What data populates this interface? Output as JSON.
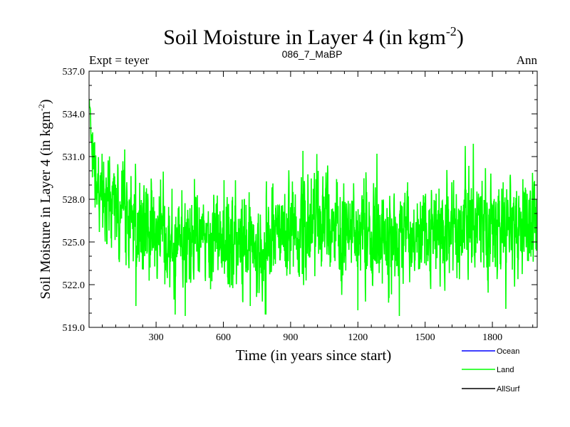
{
  "chart_data": {
    "type": "line",
    "title": "Soil Moisture in Layer 4 (in kgm",
    "title_sup": "-2",
    "title_close": ")",
    "subtitle_left": "Expt = teyer",
    "subtitle_center": "086_7_MaBP",
    "subtitle_right": "Ann",
    "xlabel": "Time (in years since start)",
    "ylabel": "Soil Moisture in Layer 4 (in kgm",
    "ylabel_sup": "-2",
    "ylabel_close": ")",
    "xlim": [
      1,
      2000
    ],
    "ylim": [
      519.0,
      537.0
    ],
    "xticks": [
      300,
      600,
      900,
      1200,
      1500,
      1800
    ],
    "xtick_labels": [
      "300",
      "600",
      "900",
      "1200",
      "1500",
      "1800"
    ],
    "yticks": [
      519.0,
      522.0,
      525.0,
      528.0,
      531.0,
      534.0,
      537.0
    ],
    "ytick_labels": [
      "519.0",
      "522.0",
      "525.0",
      "528.0",
      "531.0",
      "534.0",
      "537.0"
    ],
    "legend": [
      {
        "name": "Ocean",
        "color": "#0000ff"
      },
      {
        "name": "Land",
        "color": "#00ff00"
      },
      {
        "name": "AllSurf",
        "color": "#000000"
      }
    ],
    "series": [
      {
        "name": "Land",
        "color": "#00ff00",
        "generator": {
          "start_value": 535.0,
          "initial_decay_years": 25,
          "n_points": 2000,
          "seed": 86,
          "amplitude": 1.6,
          "baseline_points": [
            {
              "x": 1,
              "y": 529.5
            },
            {
              "x": 100,
              "y": 527.5
            },
            {
              "x": 300,
              "y": 525.8
            },
            {
              "x": 450,
              "y": 525.0
            },
            {
              "x": 600,
              "y": 525.5
            },
            {
              "x": 750,
              "y": 524.8
            },
            {
              "x": 900,
              "y": 526.0
            },
            {
              "x": 1050,
              "y": 526.8
            },
            {
              "x": 1200,
              "y": 525.8
            },
            {
              "x": 1350,
              "y": 525.0
            },
            {
              "x": 1500,
              "y": 525.5
            },
            {
              "x": 1650,
              "y": 526.5
            },
            {
              "x": 1800,
              "y": 526.0
            },
            {
              "x": 1950,
              "y": 526.0
            },
            {
              "x": 2000,
              "y": 526.5
            }
          ],
          "extremes": [
            {
              "x": 2,
              "y": 535.0
            },
            {
              "x": 160,
              "y": 531.5
            },
            {
              "x": 210,
              "y": 520.5
            },
            {
              "x": 385,
              "y": 519.9
            },
            {
              "x": 430,
              "y": 519.8
            },
            {
              "x": 720,
              "y": 520.5
            },
            {
              "x": 790,
              "y": 519.9
            },
            {
              "x": 955,
              "y": 531.4
            },
            {
              "x": 1200,
              "y": 520.2
            },
            {
              "x": 1285,
              "y": 531.2
            },
            {
              "x": 1385,
              "y": 519.8
            },
            {
              "x": 1715,
              "y": 531.9
            },
            {
              "x": 1860,
              "y": 520.3
            }
          ]
        }
      },
      {
        "name": "Ocean",
        "color": "#0000ff",
        "values": []
      },
      {
        "name": "AllSurf",
        "color": "#000000",
        "values": []
      }
    ]
  }
}
